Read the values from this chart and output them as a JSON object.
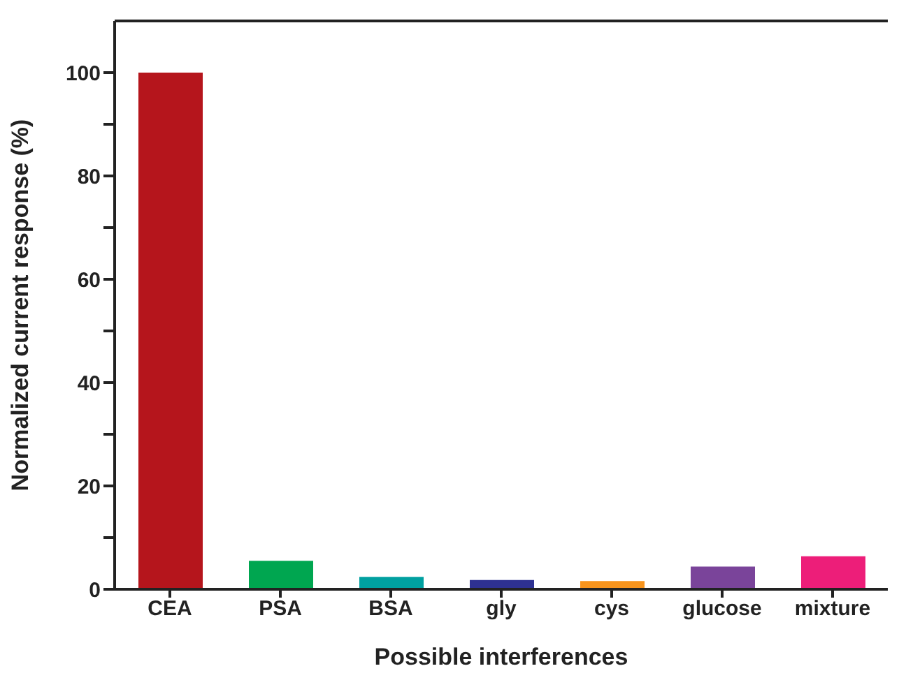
{
  "chart_data": {
    "type": "bar",
    "xlabel": "Possible interferences",
    "ylabel": "Normalized current response (%)",
    "categories": [
      "CEA",
      "PSA",
      "BSA",
      "gly",
      "cys",
      "glucose",
      "mixture"
    ],
    "values": [
      100,
      5.5,
      2.4,
      1.8,
      1.6,
      4.4,
      6.4
    ],
    "colors": [
      "#b5151c",
      "#00a650",
      "#00a0a0",
      "#2e3192",
      "#f7941d",
      "#7a449a",
      "#ed1e79"
    ],
    "ylim": [
      0,
      110
    ],
    "yticks": [
      0,
      {
        "value": 10,
        "label": null
      },
      20,
      {
        "value": 30,
        "label": null
      },
      40,
      {
        "value": 50,
        "label": null
      },
      60,
      {
        "value": 70,
        "label": null
      },
      80,
      {
        "value": 90,
        "label": null
      },
      100
    ],
    "grid": false,
    "legend": false
  }
}
